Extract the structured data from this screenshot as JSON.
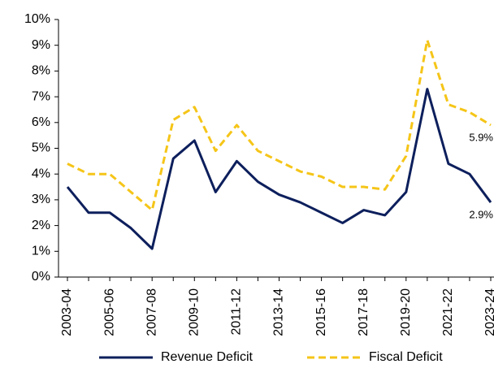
{
  "chart_data": {
    "type": "line",
    "categories": [
      "2003-04",
      null,
      "2005-06",
      null,
      "2007-08",
      null,
      "2009-10",
      null,
      "2011-12",
      null,
      "2013-14",
      null,
      "2015-16",
      null,
      "2017-18",
      null,
      "2019-20",
      null,
      "2021-22",
      null,
      "2023-24"
    ],
    "series": [
      {
        "name": "Revenue Deficit",
        "color": "#0d1f5c",
        "dashed": false,
        "values": [
          3.5,
          2.5,
          2.5,
          1.9,
          1.1,
          4.6,
          5.3,
          3.3,
          4.5,
          3.7,
          3.2,
          2.9,
          2.5,
          2.1,
          2.6,
          2.4,
          3.3,
          7.3,
          4.4,
          4.0,
          2.9
        ],
        "value_labels": [
          null,
          null,
          null,
          null,
          null,
          null,
          null,
          null,
          null,
          null,
          null,
          null,
          null,
          null,
          null,
          null,
          null,
          null,
          null,
          null,
          "2.9%"
        ]
      },
      {
        "name": "Fiscal Deficit",
        "color": "#f5c518",
        "dashed": true,
        "values": [
          4.4,
          4.0,
          4.0,
          3.3,
          2.6,
          6.1,
          6.6,
          4.9,
          5.9,
          4.9,
          4.5,
          4.1,
          3.9,
          3.5,
          3.5,
          3.4,
          4.7,
          9.2,
          6.7,
          6.4,
          5.9
        ],
        "value_labels": [
          null,
          null,
          null,
          null,
          null,
          null,
          null,
          null,
          null,
          null,
          null,
          null,
          null,
          null,
          null,
          null,
          null,
          null,
          null,
          null,
          "5.9%"
        ]
      }
    ],
    "ylim": [
      0,
      10
    ],
    "yticks": [
      {
        "value": 0,
        "label": "0%"
      },
      {
        "value": 1,
        "label": "1%"
      },
      {
        "value": 2,
        "label": "2%"
      },
      {
        "value": 3,
        "label": "3%"
      },
      {
        "value": 4,
        "label": "4%"
      },
      {
        "value": 5,
        "label": "5%"
      },
      {
        "value": 6,
        "label": "6%"
      },
      {
        "value": 7,
        "label": "7%"
      },
      {
        "value": 8,
        "label": "8%"
      },
      {
        "value": 9,
        "label": "9%"
      },
      {
        "value": 10,
        "label": "10%"
      }
    ],
    "grid": false,
    "legend": "bottom"
  }
}
